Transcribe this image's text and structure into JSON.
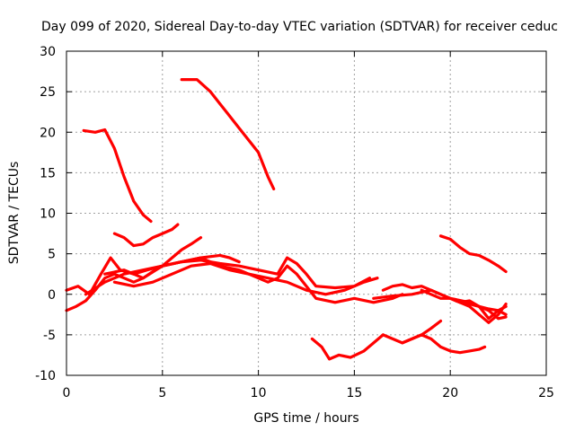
{
  "chart_data": {
    "type": "line",
    "title": "Day 099 of 2020, Sidereal Day-to-day VTEC variation (SDTVAR) for receiver ceduc",
    "xlabel": "GPS time / hours",
    "ylabel": "SDTVAR / TECUs",
    "xlim": [
      0,
      25
    ],
    "ylim": [
      -10,
      30
    ],
    "xticks": [
      "0",
      "5",
      "10",
      "15",
      "20",
      "25"
    ],
    "yticks": [
      "-10",
      "-5",
      "0",
      "5",
      "10",
      "15",
      "20",
      "25",
      "30"
    ],
    "grid": true,
    "series_color": "#ff0000",
    "series": [
      {
        "name": "s1",
        "x": [
          0.9,
          1.5,
          2.0,
          2.5,
          3.0,
          3.5,
          4.0,
          4.4
        ],
        "y": [
          20.2,
          20.0,
          20.3,
          18.0,
          14.5,
          11.5,
          9.8,
          9.0
        ]
      },
      {
        "name": "s2",
        "x": [
          6.0,
          6.8,
          7.5,
          8.0,
          8.5,
          9.0,
          9.5,
          10.0,
          10.5,
          10.8
        ],
        "y": [
          26.5,
          26.5,
          25.0,
          23.5,
          22.0,
          20.5,
          19.0,
          17.5,
          14.5,
          13.0
        ]
      },
      {
        "name": "s3",
        "x": [
          2.5,
          3.0,
          3.5,
          4.0,
          4.5,
          5.0,
          5.5,
          5.8
        ],
        "y": [
          7.5,
          7.0,
          6.0,
          6.2,
          7.0,
          7.5,
          8.0,
          8.6
        ]
      },
      {
        "name": "s4",
        "x": [
          19.5,
          20.0,
          20.5,
          21.0,
          21.5,
          22.0,
          22.5,
          22.9
        ],
        "y": [
          7.2,
          6.8,
          5.8,
          5.0,
          4.8,
          4.2,
          3.5,
          2.8
        ]
      },
      {
        "name": "s5",
        "x": [
          0.0,
          0.5,
          1.0,
          1.5,
          2.0,
          2.5,
          3.0,
          3.5,
          4.0,
          4.5,
          5.0,
          5.5,
          6.0,
          6.5,
          7.0
        ],
        "y": [
          -2.0,
          -1.5,
          -0.8,
          0.5,
          2.0,
          2.5,
          2.0,
          1.5,
          2.0,
          2.8,
          3.5,
          4.5,
          5.5,
          6.2,
          7.0
        ]
      },
      {
        "name": "s6",
        "x": [
          0.0,
          0.6,
          1.2,
          1.8,
          2.3,
          2.8,
          3.5,
          4.2,
          5.0,
          6.0,
          7.0,
          8.0,
          8.5,
          9.0
        ],
        "y": [
          0.5,
          1.0,
          0.0,
          2.5,
          4.5,
          3.0,
          2.5,
          3.0,
          3.5,
          4.0,
          4.5,
          4.8,
          4.5,
          4.0
        ]
      },
      {
        "name": "s7",
        "x": [
          1.0,
          2.0,
          3.0,
          4.0,
          5.0,
          6.0,
          7.0,
          8.0,
          9.0,
          10.0,
          11.0,
          11.5,
          12.0,
          12.5,
          13.0,
          14.0,
          15.0,
          15.8
        ],
        "y": [
          0.0,
          1.5,
          2.5,
          3.0,
          3.5,
          4.0,
          4.2,
          3.8,
          3.5,
          3.0,
          2.5,
          4.5,
          3.8,
          2.5,
          1.0,
          0.8,
          1.0,
          2.0
        ]
      },
      {
        "name": "s8",
        "x": [
          2.0,
          3.0,
          4.0,
          5.0,
          6.0,
          7.0,
          8.0,
          9.0,
          10.0,
          10.5,
          11.0,
          11.5,
          12.0,
          12.5,
          13.0,
          14.0,
          15.0,
          16.0,
          17.0,
          17.5
        ],
        "y": [
          2.5,
          3.0,
          2.0,
          3.5,
          4.0,
          4.5,
          3.5,
          3.0,
          2.0,
          1.5,
          2.0,
          3.5,
          2.5,
          1.0,
          -0.5,
          -1.0,
          -0.5,
          -1.0,
          -0.5,
          0.0
        ]
      },
      {
        "name": "s9",
        "x": [
          2.5,
          3.5,
          4.5,
          5.5,
          6.5,
          7.5,
          8.5,
          9.5,
          10.5,
          11.5,
          12.5,
          13.5,
          14.5,
          15.5,
          16.2
        ],
        "y": [
          1.5,
          1.0,
          1.5,
          2.5,
          3.5,
          3.8,
          3.0,
          2.5,
          2.0,
          1.5,
          0.5,
          0.0,
          0.5,
          1.5,
          2.0
        ]
      },
      {
        "name": "s10",
        "x": [
          16.5,
          17.0,
          17.5,
          18.0,
          18.5,
          19.0,
          19.5,
          20.0,
          20.5,
          21.0,
          21.5,
          22.0,
          22.5,
          22.9
        ],
        "y": [
          0.5,
          1.0,
          1.2,
          0.8,
          1.0,
          0.5,
          0.0,
          -0.5,
          -1.0,
          -1.2,
          -1.5,
          -1.8,
          -2.0,
          -2.5
        ]
      },
      {
        "name": "s11",
        "x": [
          16.0,
          17.0,
          18.0,
          19.0,
          20.0,
          21.0,
          21.5,
          22.0,
          22.5,
          22.9
        ],
        "y": [
          -0.5,
          -0.2,
          0.0,
          0.5,
          -0.5,
          -1.0,
          -1.5,
          -3.0,
          -2.0,
          -1.5
        ]
      },
      {
        "name": "s12",
        "x": [
          18.5,
          19.0,
          19.5,
          20.0,
          20.5,
          21.0,
          21.5,
          22.0,
          22.5,
          22.9
        ],
        "y": [
          0.5,
          0.0,
          -0.5,
          -0.5,
          -1.0,
          -0.8,
          -1.5,
          -2.0,
          -3.0,
          -2.8
        ]
      },
      {
        "name": "s13",
        "x": [
          20.5,
          21.0,
          21.5,
          22.0,
          22.5,
          22.9
        ],
        "y": [
          -1.0,
          -1.5,
          -2.5,
          -3.5,
          -2.5,
          -1.2
        ]
      },
      {
        "name": "s14",
        "x": [
          12.8,
          13.3,
          13.7,
          14.2,
          14.8,
          15.5,
          16.0,
          16.5
        ],
        "y": [
          -5.5,
          -6.5,
          -8.0,
          -7.5,
          -7.8,
          -7.0,
          -6.0,
          -5.0
        ]
      },
      {
        "name": "s15",
        "x": [
          16.5,
          17.0,
          17.5,
          18.0,
          18.5,
          19.0,
          19.5,
          20.0,
          20.5,
          21.0,
          21.5,
          21.8
        ],
        "y": [
          -5.0,
          -5.5,
          -6.0,
          -5.5,
          -5.0,
          -5.5,
          -6.5,
          -7.0,
          -7.2,
          -7.0,
          -6.8,
          -6.5
        ]
      },
      {
        "name": "s16",
        "x": [
          17.5,
          18.0,
          18.5,
          19.0,
          19.5
        ],
        "y": [
          -6.0,
          -5.5,
          -5.0,
          -4.2,
          -3.3
        ]
      }
    ]
  }
}
